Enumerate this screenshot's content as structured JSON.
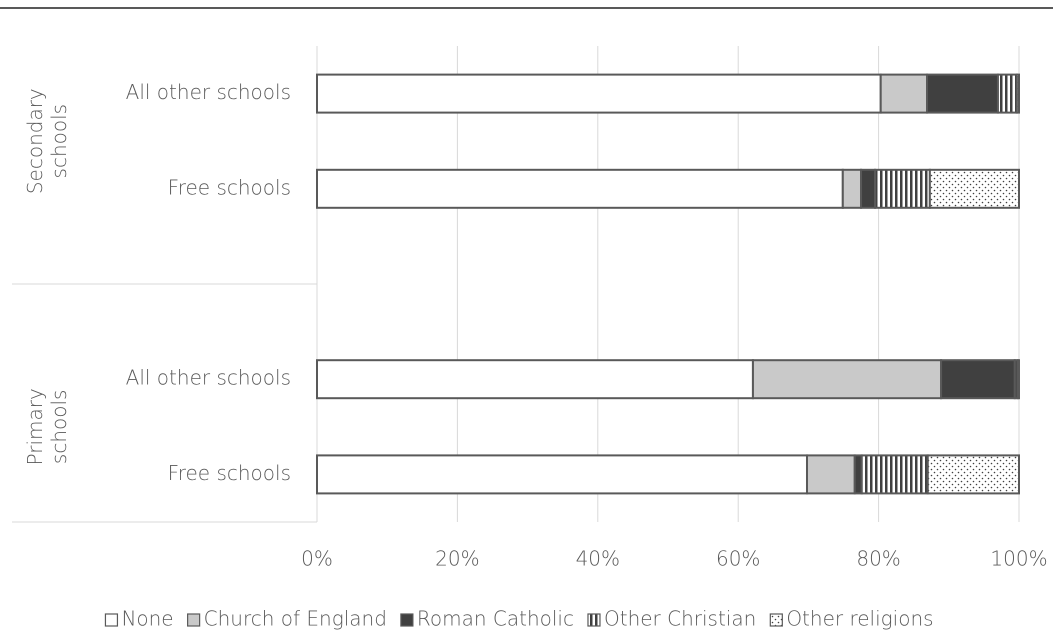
{
  "chart_data": {
    "type": "stacked-bar-horizontal",
    "groups": [
      {
        "name": "Secondary schools",
        "categories": [
          "All other schools",
          "Free schools"
        ]
      },
      {
        "name": "Primary schools",
        "categories": [
          "All other schools",
          "Free schools"
        ]
      }
    ],
    "series": [
      {
        "name": "None",
        "color": "#ffffff",
        "pattern": "solid",
        "values": [
          80.3,
          74.9,
          62.1,
          69.8
        ]
      },
      {
        "name": "Church of England",
        "color": "#c9c9c9",
        "pattern": "solid",
        "values": [
          6.6,
          2.6,
          26.8,
          6.8
        ]
      },
      {
        "name": "Roman Catholic",
        "color": "#404040",
        "pattern": "solid",
        "values": [
          10.1,
          2.0,
          10.5,
          1.0
        ]
      },
      {
        "name": "Other Christian",
        "color": "#404040",
        "pattern": "vertical-stripes",
        "values": [
          2.7,
          7.8,
          0.4,
          9.4
        ]
      },
      {
        "name": "Other religions",
        "color": "#404040",
        "pattern": "dots",
        "values": [
          0.3,
          12.7,
          0.2,
          13.0
        ]
      }
    ],
    "xlim": [
      0,
      100
    ],
    "xticks": [
      {
        "value": 0,
        "label": "0%"
      },
      {
        "value": 20,
        "label": "20%"
      },
      {
        "value": 40,
        "label": "40%"
      },
      {
        "value": 60,
        "label": "60%"
      },
      {
        "value": 80,
        "label": "80%"
      },
      {
        "value": 100,
        "label": "100%"
      }
    ],
    "grid": true,
    "legend": "bottom"
  }
}
